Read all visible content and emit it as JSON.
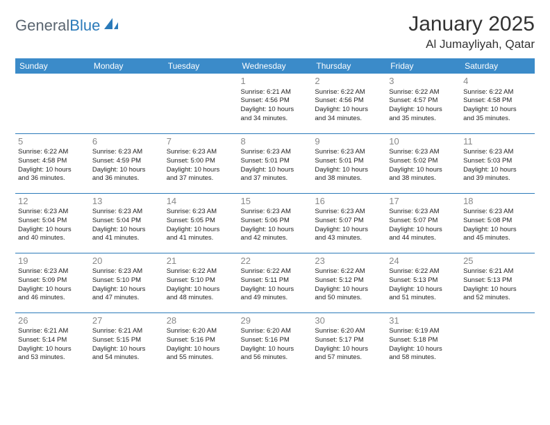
{
  "logo": {
    "text1": "General",
    "text2": "Blue"
  },
  "title": "January 2025",
  "location": "Al Jumayliyah, Qatar",
  "weekdays": [
    "Sunday",
    "Monday",
    "Tuesday",
    "Wednesday",
    "Thursday",
    "Friday",
    "Saturday"
  ],
  "colors": {
    "header_bg": "#3b8bc9",
    "accent": "#2a7ab9",
    "logo_gray": "#5a6570",
    "text": "#222222",
    "daynum": "#888888",
    "background": "#ffffff"
  },
  "weeks": [
    [
      {
        "day": "",
        "lines": []
      },
      {
        "day": "",
        "lines": []
      },
      {
        "day": "",
        "lines": []
      },
      {
        "day": "1",
        "lines": [
          "Sunrise: 6:21 AM",
          "Sunset: 4:56 PM",
          "Daylight: 10 hours",
          "and 34 minutes."
        ]
      },
      {
        "day": "2",
        "lines": [
          "Sunrise: 6:22 AM",
          "Sunset: 4:56 PM",
          "Daylight: 10 hours",
          "and 34 minutes."
        ]
      },
      {
        "day": "3",
        "lines": [
          "Sunrise: 6:22 AM",
          "Sunset: 4:57 PM",
          "Daylight: 10 hours",
          "and 35 minutes."
        ]
      },
      {
        "day": "4",
        "lines": [
          "Sunrise: 6:22 AM",
          "Sunset: 4:58 PM",
          "Daylight: 10 hours",
          "and 35 minutes."
        ]
      }
    ],
    [
      {
        "day": "5",
        "lines": [
          "Sunrise: 6:22 AM",
          "Sunset: 4:58 PM",
          "Daylight: 10 hours",
          "and 36 minutes."
        ]
      },
      {
        "day": "6",
        "lines": [
          "Sunrise: 6:23 AM",
          "Sunset: 4:59 PM",
          "Daylight: 10 hours",
          "and 36 minutes."
        ]
      },
      {
        "day": "7",
        "lines": [
          "Sunrise: 6:23 AM",
          "Sunset: 5:00 PM",
          "Daylight: 10 hours",
          "and 37 minutes."
        ]
      },
      {
        "day": "8",
        "lines": [
          "Sunrise: 6:23 AM",
          "Sunset: 5:01 PM",
          "Daylight: 10 hours",
          "and 37 minutes."
        ]
      },
      {
        "day": "9",
        "lines": [
          "Sunrise: 6:23 AM",
          "Sunset: 5:01 PM",
          "Daylight: 10 hours",
          "and 38 minutes."
        ]
      },
      {
        "day": "10",
        "lines": [
          "Sunrise: 6:23 AM",
          "Sunset: 5:02 PM",
          "Daylight: 10 hours",
          "and 38 minutes."
        ]
      },
      {
        "day": "11",
        "lines": [
          "Sunrise: 6:23 AM",
          "Sunset: 5:03 PM",
          "Daylight: 10 hours",
          "and 39 minutes."
        ]
      }
    ],
    [
      {
        "day": "12",
        "lines": [
          "Sunrise: 6:23 AM",
          "Sunset: 5:04 PM",
          "Daylight: 10 hours",
          "and 40 minutes."
        ]
      },
      {
        "day": "13",
        "lines": [
          "Sunrise: 6:23 AM",
          "Sunset: 5:04 PM",
          "Daylight: 10 hours",
          "and 41 minutes."
        ]
      },
      {
        "day": "14",
        "lines": [
          "Sunrise: 6:23 AM",
          "Sunset: 5:05 PM",
          "Daylight: 10 hours",
          "and 41 minutes."
        ]
      },
      {
        "day": "15",
        "lines": [
          "Sunrise: 6:23 AM",
          "Sunset: 5:06 PM",
          "Daylight: 10 hours",
          "and 42 minutes."
        ]
      },
      {
        "day": "16",
        "lines": [
          "Sunrise: 6:23 AM",
          "Sunset: 5:07 PM",
          "Daylight: 10 hours",
          "and 43 minutes."
        ]
      },
      {
        "day": "17",
        "lines": [
          "Sunrise: 6:23 AM",
          "Sunset: 5:07 PM",
          "Daylight: 10 hours",
          "and 44 minutes."
        ]
      },
      {
        "day": "18",
        "lines": [
          "Sunrise: 6:23 AM",
          "Sunset: 5:08 PM",
          "Daylight: 10 hours",
          "and 45 minutes."
        ]
      }
    ],
    [
      {
        "day": "19",
        "lines": [
          "Sunrise: 6:23 AM",
          "Sunset: 5:09 PM",
          "Daylight: 10 hours",
          "and 46 minutes."
        ]
      },
      {
        "day": "20",
        "lines": [
          "Sunrise: 6:23 AM",
          "Sunset: 5:10 PM",
          "Daylight: 10 hours",
          "and 47 minutes."
        ]
      },
      {
        "day": "21",
        "lines": [
          "Sunrise: 6:22 AM",
          "Sunset: 5:10 PM",
          "Daylight: 10 hours",
          "and 48 minutes."
        ]
      },
      {
        "day": "22",
        "lines": [
          "Sunrise: 6:22 AM",
          "Sunset: 5:11 PM",
          "Daylight: 10 hours",
          "and 49 minutes."
        ]
      },
      {
        "day": "23",
        "lines": [
          "Sunrise: 6:22 AM",
          "Sunset: 5:12 PM",
          "Daylight: 10 hours",
          "and 50 minutes."
        ]
      },
      {
        "day": "24",
        "lines": [
          "Sunrise: 6:22 AM",
          "Sunset: 5:13 PM",
          "Daylight: 10 hours",
          "and 51 minutes."
        ]
      },
      {
        "day": "25",
        "lines": [
          "Sunrise: 6:21 AM",
          "Sunset: 5:13 PM",
          "Daylight: 10 hours",
          "and 52 minutes."
        ]
      }
    ],
    [
      {
        "day": "26",
        "lines": [
          "Sunrise: 6:21 AM",
          "Sunset: 5:14 PM",
          "Daylight: 10 hours",
          "and 53 minutes."
        ]
      },
      {
        "day": "27",
        "lines": [
          "Sunrise: 6:21 AM",
          "Sunset: 5:15 PM",
          "Daylight: 10 hours",
          "and 54 minutes."
        ]
      },
      {
        "day": "28",
        "lines": [
          "Sunrise: 6:20 AM",
          "Sunset: 5:16 PM",
          "Daylight: 10 hours",
          "and 55 minutes."
        ]
      },
      {
        "day": "29",
        "lines": [
          "Sunrise: 6:20 AM",
          "Sunset: 5:16 PM",
          "Daylight: 10 hours",
          "and 56 minutes."
        ]
      },
      {
        "day": "30",
        "lines": [
          "Sunrise: 6:20 AM",
          "Sunset: 5:17 PM",
          "Daylight: 10 hours",
          "and 57 minutes."
        ]
      },
      {
        "day": "31",
        "lines": [
          "Sunrise: 6:19 AM",
          "Sunset: 5:18 PM",
          "Daylight: 10 hours",
          "and 58 minutes."
        ]
      },
      {
        "day": "",
        "lines": []
      }
    ]
  ]
}
